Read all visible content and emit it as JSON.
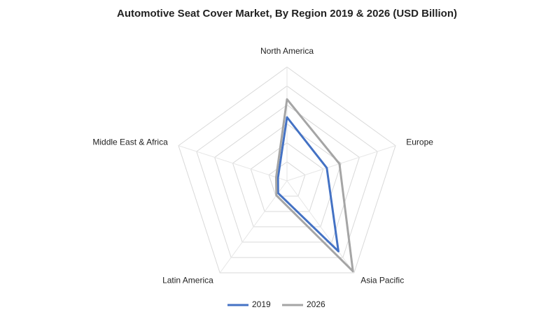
{
  "chart_data": {
    "type": "radar",
    "title": "Automotive  Seat Cover Market, By  Region 2019  & 2026 (USD  Billion)",
    "categories": [
      "North America",
      "Europe",
      "Asia Pacific",
      "Latin America",
      "Middle East & Africa"
    ],
    "series": [
      {
        "name": "2019",
        "color": "#4472c4",
        "values": [
          6.7,
          4.4,
          9.2,
          1.6,
          1.0
        ]
      },
      {
        "name": "2026",
        "color": "#a5a5a5",
        "values": [
          8.6,
          5.8,
          11.8,
          1.9,
          1.2
        ]
      }
    ],
    "ylim": [
      0,
      12
    ],
    "yticks": [
      0,
      2,
      4,
      6,
      8,
      10,
      12
    ],
    "grid": true
  }
}
